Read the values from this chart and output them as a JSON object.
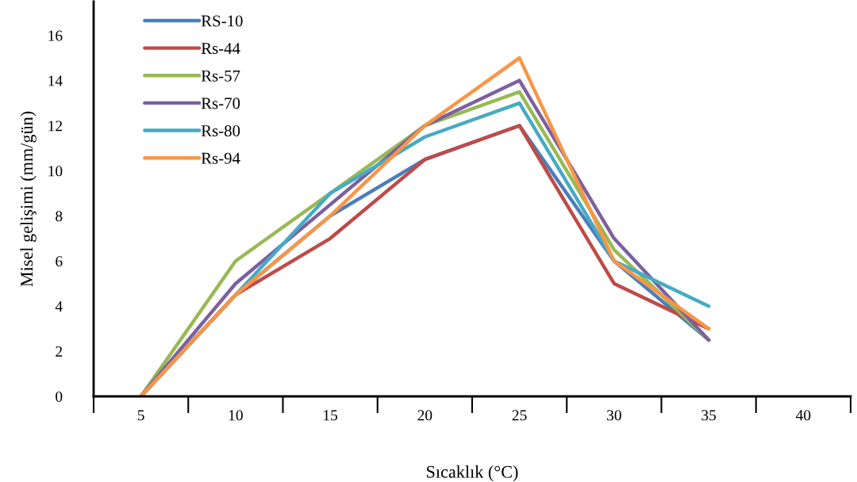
{
  "chart_data": {
    "type": "line",
    "xlabel": "Sıcaklık (°C)",
    "ylabel": "Misel gelişimi (mm/gün)",
    "categories": [
      "5",
      "10",
      "15",
      "20",
      "25",
      "30",
      "35",
      "40"
    ],
    "ylim": [
      0,
      17.5
    ],
    "yticks": [
      0,
      2,
      4,
      6,
      8,
      10,
      12,
      14,
      16
    ],
    "grid": false,
    "legend": "top left",
    "marker": "none",
    "line_style": "solid",
    "series": [
      {
        "name": "RS-10",
        "color": "#4a7ebb",
        "values": [
          0,
          4.5,
          8,
          10.5,
          12,
          6,
          2.5,
          null
        ]
      },
      {
        "name": "Rs-44",
        "color": "#be4b48",
        "values": [
          0,
          4.5,
          7,
          10.5,
          12,
          5,
          3,
          null
        ]
      },
      {
        "name": "Rs-57",
        "color": "#98b954",
        "values": [
          0,
          6,
          9,
          12,
          13.5,
          6.5,
          2.5,
          null
        ]
      },
      {
        "name": "Rs-70",
        "color": "#7d60a0",
        "values": [
          0,
          5,
          8.5,
          12,
          14,
          7,
          2.5,
          null
        ]
      },
      {
        "name": "Rs-80",
        "color": "#46aac5",
        "values": [
          0,
          4.5,
          9,
          11.5,
          13,
          6,
          4,
          null
        ]
      },
      {
        "name": "Rs-94",
        "color": "#f79646",
        "values": [
          0,
          4.5,
          8,
          12,
          15,
          6,
          3,
          null
        ]
      }
    ]
  }
}
